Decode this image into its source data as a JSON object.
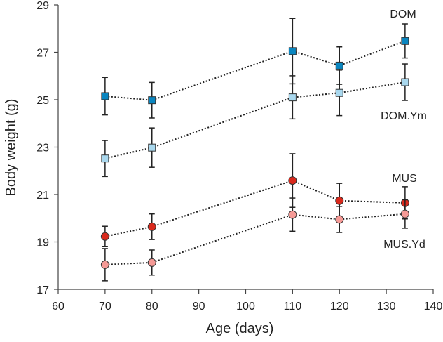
{
  "chart_data": {
    "type": "line",
    "title": "",
    "xlabel": "Age (days)",
    "ylabel": "Body weight (g)",
    "xlim": [
      60,
      140
    ],
    "ylim": [
      17,
      29
    ],
    "xticks": [
      60,
      70,
      80,
      90,
      100,
      110,
      120,
      130,
      140
    ],
    "yticks": [
      17,
      19,
      21,
      23,
      25,
      27,
      29
    ],
    "grid": false,
    "x": [
      70,
      80,
      110,
      120,
      134
    ],
    "series": [
      {
        "name": "DOM",
        "marker": "square",
        "color": "#0a86c0",
        "values": [
          25.15,
          24.98,
          27.05,
          26.44,
          27.48
        ],
        "errors": [
          0.79,
          0.75,
          1.38,
          0.79,
          0.72
        ]
      },
      {
        "name": "DOM.Ym",
        "marker": "square",
        "color": "#a9d8ee",
        "values": [
          22.52,
          22.98,
          25.1,
          25.29,
          25.74
        ],
        "errors": [
          0.76,
          0.83,
          0.91,
          0.96,
          0.77
        ]
      },
      {
        "name": "MUS",
        "marker": "circle",
        "color": "#d9291c",
        "values": [
          19.23,
          19.64,
          21.59,
          20.74,
          20.65
        ],
        "errors": [
          0.43,
          0.54,
          1.13,
          0.73,
          0.68
        ]
      },
      {
        "name": "MUS.Yd",
        "marker": "circle",
        "color": "#f59a96",
        "values": [
          18.04,
          18.13,
          20.15,
          19.95,
          20.18
        ],
        "errors": [
          0.68,
          0.53,
          0.7,
          0.55,
          0.6
        ]
      }
    ]
  }
}
